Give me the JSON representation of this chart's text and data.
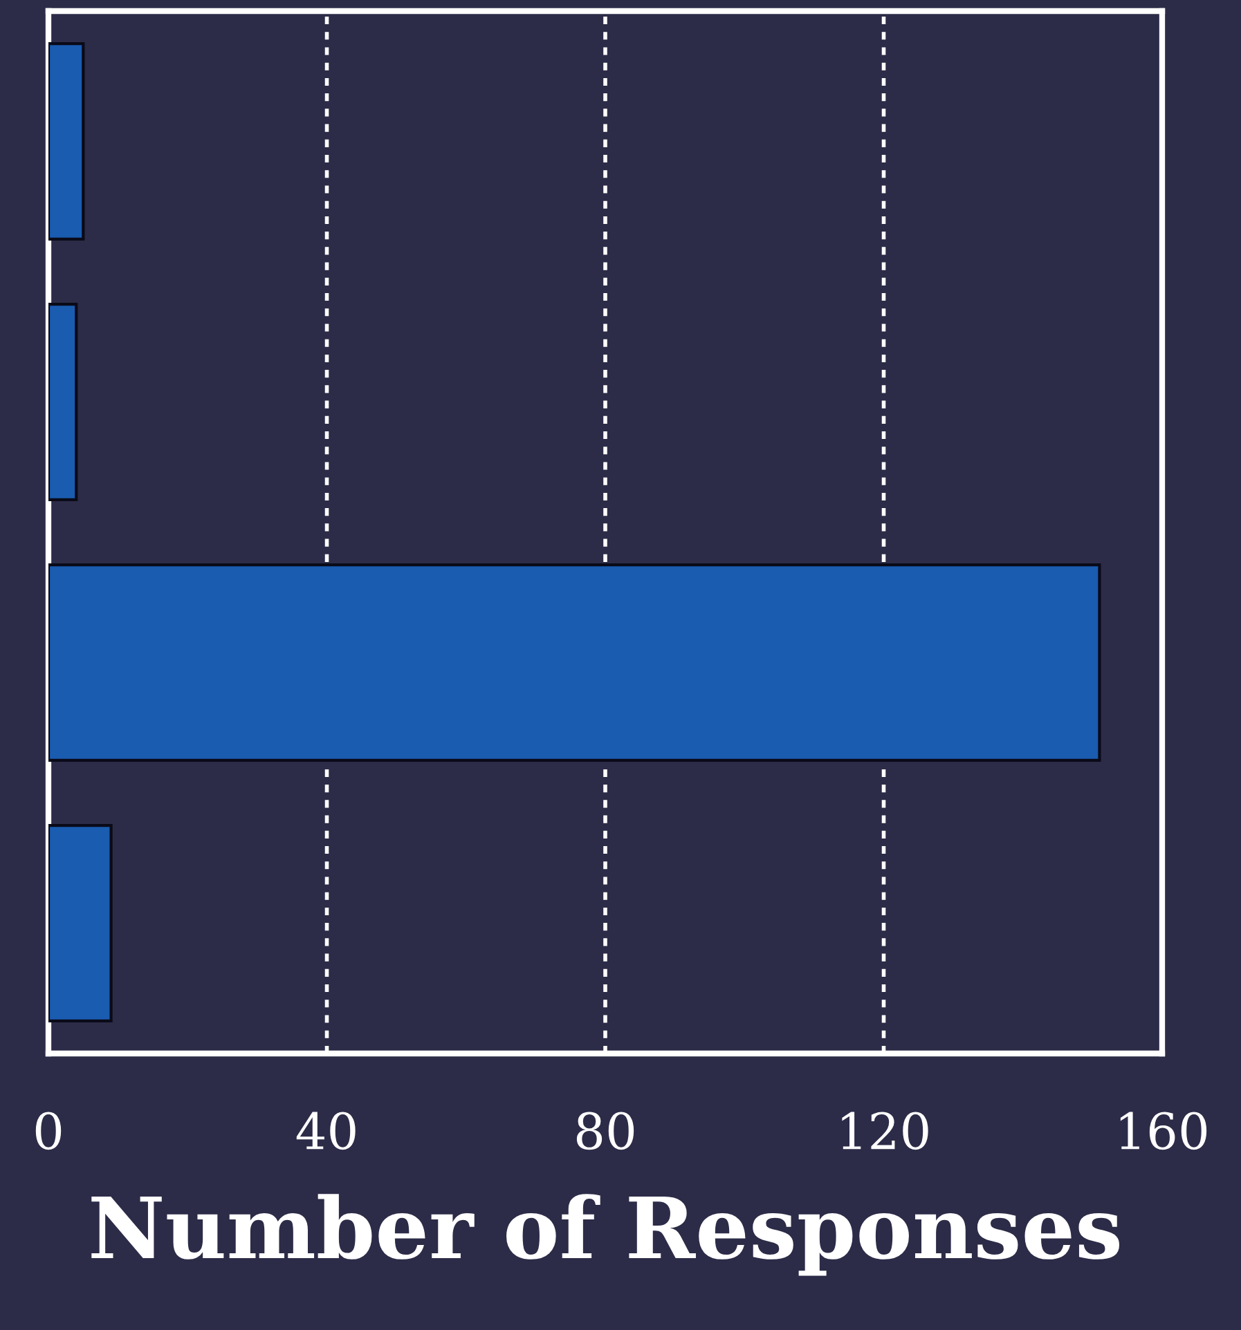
{
  "chart_data": {
    "type": "bar",
    "orientation": "horizontal",
    "xlabel": "Number of Responses",
    "categories": [
      null,
      null,
      null,
      null
    ],
    "values": [
      5,
      4,
      151,
      9
    ],
    "color": "#1a5cb0",
    "xlim": [
      0,
      160
    ],
    "xticks": [
      0,
      40,
      80,
      120,
      160
    ],
    "grid": "x",
    "tick_labels": "x"
  }
}
